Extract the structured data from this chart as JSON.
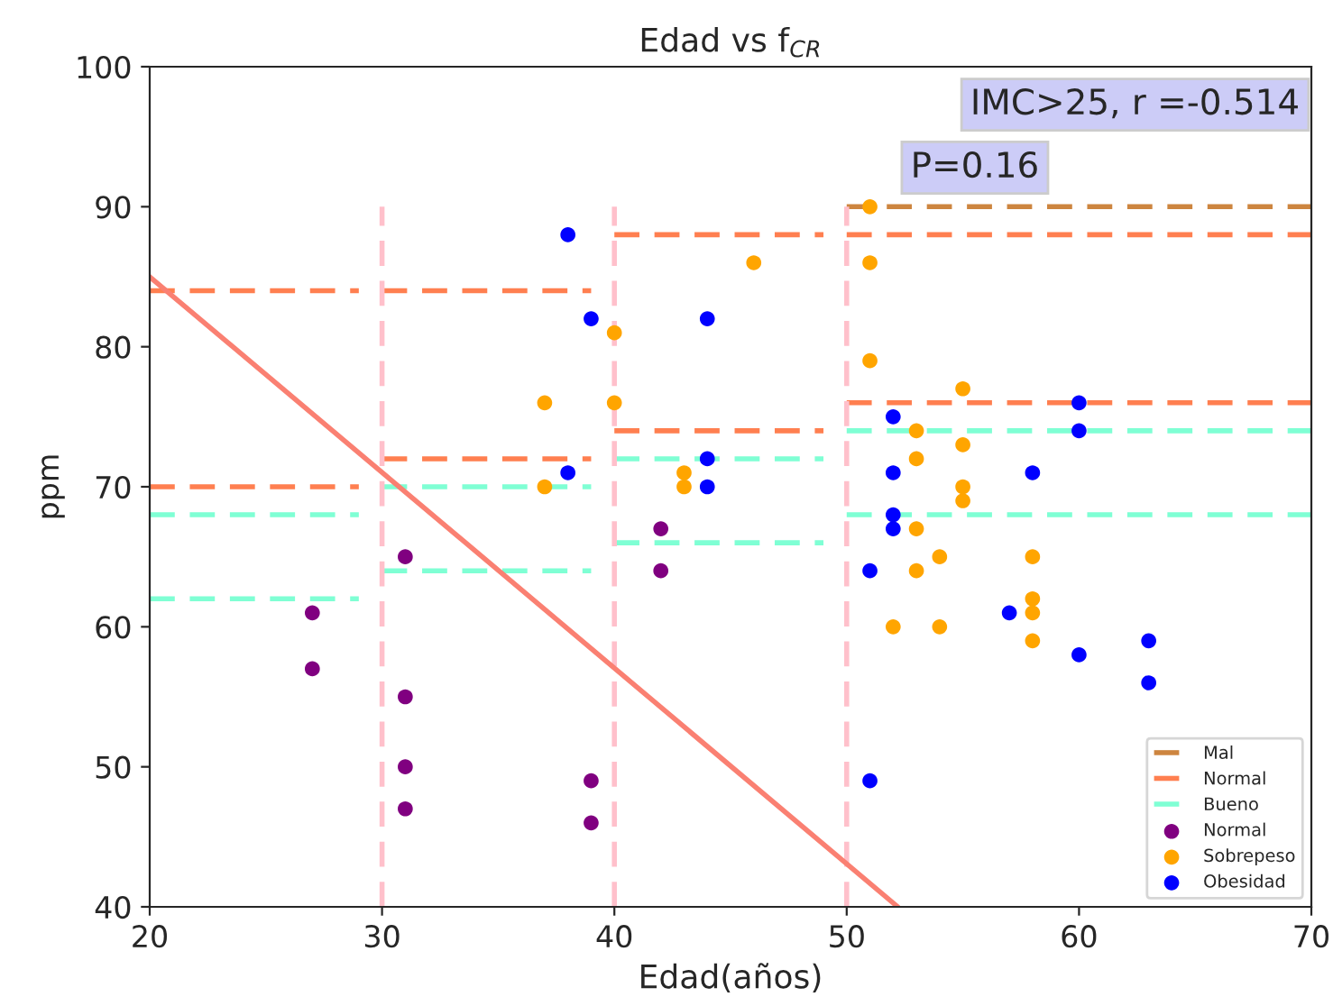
{
  "chart_data": {
    "type": "scatter",
    "title": "Edad vs f$_{CR}$",
    "xlabel": "Edad(años)",
    "ylabel": "ppm",
    "xlim": [
      20,
      70
    ],
    "ylim": [
      40,
      100
    ],
    "xticks": [
      20,
      30,
      40,
      50,
      60,
      70
    ],
    "yticks": [
      40,
      50,
      60,
      70,
      80,
      90,
      100
    ],
    "grid": false,
    "legend": "bottom right",
    "annotations": [
      "IMC>25, r =-0.514",
      "P=0.16"
    ],
    "series": [
      {
        "type": "line",
        "name": "Mal",
        "color": "#cd853f",
        "line_style": "dashed",
        "x": [
          50,
          70
        ],
        "values": [
          90,
          90
        ]
      },
      {
        "type": "line",
        "name": "Normal",
        "color": "#ff7f50",
        "line_style": "dashed",
        "x": [
          20,
          29
        ],
        "values": [
          84,
          84
        ]
      },
      {
        "type": "line",
        "color": "#ff7f50",
        "line_style": "dashed",
        "x": [
          30,
          39
        ],
        "values": [
          84,
          84
        ]
      },
      {
        "type": "line",
        "color": "#ff7f50",
        "line_style": "dashed",
        "x": [
          40,
          49
        ],
        "values": [
          88,
          88
        ]
      },
      {
        "type": "line",
        "color": "#ff7f50",
        "line_style": "dashed",
        "x": [
          50,
          70
        ],
        "values": [
          88,
          88
        ]
      },
      {
        "type": "line",
        "color": "#ff7f50",
        "line_style": "dashed",
        "x": [
          20,
          29
        ],
        "values": [
          70,
          70
        ]
      },
      {
        "type": "line",
        "color": "#ff7f50",
        "line_style": "dashed",
        "x": [
          30,
          39
        ],
        "values": [
          72,
          72
        ]
      },
      {
        "type": "line",
        "color": "#ff7f50",
        "line_style": "dashed",
        "x": [
          40,
          49
        ],
        "values": [
          74,
          74
        ]
      },
      {
        "type": "line",
        "color": "#ff7f50",
        "line_style": "dashed",
        "x": [
          50,
          70
        ],
        "values": [
          76,
          76
        ]
      },
      {
        "type": "line",
        "name": "Bueno",
        "color": "#7fffd4",
        "line_style": "dashed",
        "x": [
          20,
          29
        ],
        "values": [
          68,
          68
        ]
      },
      {
        "type": "line",
        "color": "#7fffd4",
        "line_style": "dashed",
        "x": [
          30,
          39
        ],
        "values": [
          70,
          70
        ]
      },
      {
        "type": "line",
        "color": "#7fffd4",
        "line_style": "dashed",
        "x": [
          40,
          49
        ],
        "values": [
          72,
          72
        ]
      },
      {
        "type": "line",
        "color": "#7fffd4",
        "line_style": "dashed",
        "x": [
          50,
          70
        ],
        "values": [
          74,
          74
        ]
      },
      {
        "type": "line",
        "color": "#7fffd4",
        "line_style": "dashed",
        "x": [
          20,
          29
        ],
        "values": [
          62,
          62
        ]
      },
      {
        "type": "line",
        "color": "#7fffd4",
        "line_style": "dashed",
        "x": [
          30,
          39
        ],
        "values": [
          64,
          64
        ]
      },
      {
        "type": "line",
        "color": "#7fffd4",
        "line_style": "dashed",
        "x": [
          40,
          49
        ],
        "values": [
          66,
          66
        ]
      },
      {
        "type": "line",
        "color": "#7fffd4",
        "line_style": "dashed",
        "x": [
          50,
          70
        ],
        "values": [
          68,
          68
        ]
      },
      {
        "type": "line",
        "color": "#ffc0cb",
        "line_style": "dashed",
        "x": [
          30,
          30
        ],
        "values": [
          40,
          90
        ]
      },
      {
        "type": "line",
        "color": "#ffc0cb",
        "line_style": "dashed",
        "x": [
          40,
          40
        ],
        "values": [
          40,
          90
        ]
      },
      {
        "type": "line",
        "color": "#ffc0cb",
        "line_style": "dashed",
        "x": [
          50,
          50
        ],
        "values": [
          40,
          90
        ]
      },
      {
        "type": "line",
        "color": "#fa8072",
        "line_style": "solid",
        "x": [
          20,
          52.2
        ],
        "values": [
          85,
          40
        ]
      },
      {
        "name": "Normal",
        "color": "#800080",
        "marker": "circle",
        "x": [
          27,
          27,
          31,
          31,
          31,
          31,
          39,
          39,
          42,
          42
        ],
        "values": [
          61,
          57,
          65,
          55,
          50,
          47,
          49,
          46,
          67,
          64
        ]
      },
      {
        "name": "Sobrepeso",
        "color": "#ffa500",
        "marker": "circle",
        "x": [
          37,
          37,
          40,
          40,
          43,
          43,
          46,
          51,
          51,
          51,
          52,
          53,
          53,
          53,
          53,
          54,
          54,
          55,
          55,
          55,
          55,
          58,
          58,
          58,
          58
        ],
        "values": [
          76,
          70,
          81,
          76,
          71,
          70,
          86,
          90,
          86,
          79,
          60,
          74,
          72,
          67,
          64,
          65,
          60,
          77,
          73,
          70,
          69,
          65,
          62,
          61,
          59
        ]
      },
      {
        "name": "Obesidad",
        "color": "#0000ff",
        "marker": "circle",
        "x": [
          38,
          39,
          38,
          44,
          44,
          44,
          51,
          51,
          52,
          52,
          52,
          52,
          57,
          58,
          60,
          60,
          60,
          63,
          63
        ],
        "values": [
          88,
          82,
          71,
          82,
          72,
          70,
          64,
          49,
          75,
          71,
          68,
          67,
          61,
          71,
          76,
          74,
          58,
          59,
          56
        ]
      }
    ]
  }
}
